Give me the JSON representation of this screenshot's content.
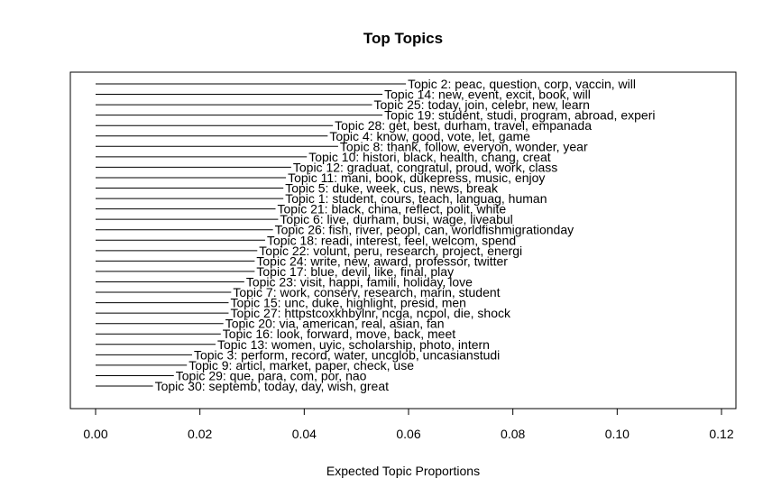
{
  "chart_data": {
    "type": "bar",
    "orientation": "horizontal",
    "title": "Top Topics",
    "xlabel": "Expected Topic Proportions",
    "ylabel": "",
    "xlim": [
      0,
      0.12
    ],
    "xticks": [
      "0.00",
      "0.02",
      "0.04",
      "0.06",
      "0.08",
      "0.10",
      "0.12"
    ],
    "xtick_values": [
      0,
      0.02,
      0.04,
      0.06,
      0.08,
      0.1,
      0.12
    ],
    "grid": false,
    "categories": [
      "Topic 2: peac, question, corp, vaccin, will",
      "Topic 14: new, event, excit, book, will",
      "Topic 25: today, join, celebr, new, learn",
      "Topic 19: student, studi, program, abroad, experi",
      "Topic 28: get, best, durham, travel, empanada",
      "Topic 4: know, good, vote, let, game",
      "Topic 8: thank, follow, everyon, wonder, year",
      "Topic 10: histori, black, health, chang, creat",
      "Topic 12: graduat, congratul, proud, work, class",
      "Topic 11: mani, book, dukepress, music, enjoy",
      "Topic 5: duke, week, cus, news, break",
      "Topic 1: student, cours, teach, languag, human",
      "Topic 21: black, china, reflect, polit, white",
      "Topic 6: live, durham, busi, wage, liveabul",
      "Topic 26: fish, river, peopl, can, worldfishmigrationday",
      "Topic 18: readi, interest, feel, welcom, spend",
      "Topic 22: volunt, peru, research, project, energi",
      "Topic 24: write, new, award, professor, twitter",
      "Topic 17: blue, devil, like, final, play",
      "Topic 23: visit, happi, famili, holiday, love",
      "Topic 7: work, conserv, research, marin, student",
      "Topic 15: unc, duke, highlight, presid, men",
      "Topic 27: httpstcoxkhbylnr, ncga, ncpol, die, shock",
      "Topic 20: via, american, real, asian, fan",
      "Topic 16: look, forward, move, back, meet",
      "Topic 13: women, uyic, scholarship, photo, intern",
      "Topic 3: perform, record, water, uncglob, uncasianstudi",
      "Topic 9: articl, market, paper, check, use",
      "Topic 29: que, para, com, por, nao",
      "Topic 30: septemb, today, day, wish, great"
    ],
    "values": [
      0.0595,
      0.055,
      0.053,
      0.055,
      0.0455,
      0.0445,
      0.0465,
      0.0405,
      0.0375,
      0.0365,
      0.036,
      0.036,
      0.0345,
      0.035,
      0.034,
      0.0325,
      0.031,
      0.0305,
      0.0305,
      0.0285,
      0.026,
      0.0255,
      0.0255,
      0.0245,
      0.024,
      0.023,
      0.0185,
      0.0175,
      0.015,
      0.011
    ]
  }
}
